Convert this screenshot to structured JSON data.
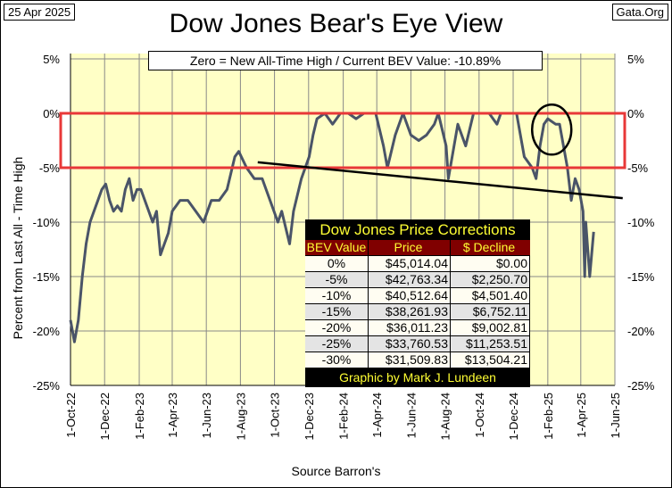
{
  "header": {
    "date": "25 Apr 2025",
    "site": "Gata.Org"
  },
  "footer": {
    "source": "Source Barron's"
  },
  "colors": {
    "plot_bg": "#FFFFC6",
    "series": "#4A5468",
    "box": "#E83838",
    "trend": "#000000"
  },
  "chart_data": {
    "type": "line",
    "title": "Dow Jones Bear's Eye View",
    "subtitle": "Zero = New All-Time High / Current BEV Value:  -10.89%",
    "xlabel": "",
    "ylabel": "Percent from Last All - Time High",
    "ylim": [
      -25,
      5
    ],
    "xlim": [
      "2022-10-01",
      "2025-06-01"
    ],
    "grid": true,
    "y_ticks": [
      "5%",
      "0%",
      "-5%",
      "-10%",
      "-15%",
      "-20%",
      "-25%"
    ],
    "y_tick_values": [
      5,
      0,
      -5,
      -10,
      -15,
      -20,
      -25
    ],
    "x_ticks": [
      "1-Oct-22",
      "1-Dec-22",
      "1-Feb-23",
      "1-Apr-23",
      "1-Jun-23",
      "1-Aug-23",
      "1-Oct-23",
      "1-Dec-23",
      "1-Feb-24",
      "1-Apr-24",
      "1-Jun-24",
      "1-Aug-24",
      "1-Oct-24",
      "1-Dec-24",
      "1-Feb-25",
      "1-Apr-25",
      "1-Jun-25"
    ],
    "series": [
      {
        "name": "Dow Jones BEV",
        "points": [
          [
            "2022-10-01",
            -19
          ],
          [
            "2022-10-08",
            -21
          ],
          [
            "2022-10-15",
            -19
          ],
          [
            "2022-10-22",
            -15
          ],
          [
            "2022-10-29",
            -12
          ],
          [
            "2022-11-05",
            -10
          ],
          [
            "2022-11-12",
            -9
          ],
          [
            "2022-11-19",
            -8
          ],
          [
            "2022-11-26",
            -7
          ],
          [
            "2022-12-03",
            -6.5
          ],
          [
            "2022-12-10",
            -8
          ],
          [
            "2022-12-17",
            -9
          ],
          [
            "2022-12-24",
            -8.5
          ],
          [
            "2022-12-31",
            -9
          ],
          [
            "2023-01-07",
            -7
          ],
          [
            "2023-01-14",
            -6
          ],
          [
            "2023-01-21",
            -8
          ],
          [
            "2023-01-28",
            -7
          ],
          [
            "2023-02-04",
            -7
          ],
          [
            "2023-02-11",
            -8
          ],
          [
            "2023-02-18",
            -9
          ],
          [
            "2023-02-25",
            -10
          ],
          [
            "2023-03-04",
            -9
          ],
          [
            "2023-03-11",
            -13
          ],
          [
            "2023-03-18",
            -12
          ],
          [
            "2023-03-25",
            -11
          ],
          [
            "2023-04-01",
            -9
          ],
          [
            "2023-04-15",
            -8
          ],
          [
            "2023-04-29",
            -8
          ],
          [
            "2023-05-13",
            -9
          ],
          [
            "2023-05-27",
            -10
          ],
          [
            "2023-06-10",
            -8
          ],
          [
            "2023-06-24",
            -8
          ],
          [
            "2023-07-08",
            -7
          ],
          [
            "2023-07-22",
            -4
          ],
          [
            "2023-07-29",
            -3.5
          ],
          [
            "2023-08-12",
            -5
          ],
          [
            "2023-08-26",
            -6
          ],
          [
            "2023-09-09",
            -6
          ],
          [
            "2023-09-23",
            -8
          ],
          [
            "2023-10-07",
            -10
          ],
          [
            "2023-10-14",
            -9
          ],
          [
            "2023-10-28",
            -12
          ],
          [
            "2023-11-04",
            -9
          ],
          [
            "2023-11-18",
            -6
          ],
          [
            "2023-12-02",
            -4
          ],
          [
            "2023-12-09",
            -2
          ],
          [
            "2023-12-16",
            -0.5
          ],
          [
            "2023-12-30",
            0
          ],
          [
            "2024-01-13",
            -1
          ],
          [
            "2024-01-27",
            0
          ],
          [
            "2024-02-10",
            0
          ],
          [
            "2024-02-24",
            -0.5
          ],
          [
            "2024-03-09",
            0
          ],
          [
            "2024-03-30",
            0
          ],
          [
            "2024-04-13",
            -3
          ],
          [
            "2024-04-20",
            -5
          ],
          [
            "2024-05-04",
            -2
          ],
          [
            "2024-05-18",
            0
          ],
          [
            "2024-06-01",
            -2
          ],
          [
            "2024-06-15",
            -2.5
          ],
          [
            "2024-06-29",
            -2
          ],
          [
            "2024-07-13",
            -1
          ],
          [
            "2024-07-20",
            0
          ],
          [
            "2024-08-03",
            -3
          ],
          [
            "2024-08-07",
            -6
          ],
          [
            "2024-08-24",
            -1
          ],
          [
            "2024-09-07",
            -3
          ],
          [
            "2024-09-21",
            0
          ],
          [
            "2024-10-05",
            0
          ],
          [
            "2024-10-19",
            0
          ],
          [
            "2024-11-02",
            -1
          ],
          [
            "2024-11-09",
            0
          ],
          [
            "2024-11-23",
            0
          ],
          [
            "2024-12-07",
            0
          ],
          [
            "2024-12-21",
            -4
          ],
          [
            "2025-01-04",
            -5
          ],
          [
            "2025-01-11",
            -6
          ],
          [
            "2025-01-18",
            -3
          ],
          [
            "2025-01-25",
            -1
          ],
          [
            "2025-02-01",
            -0.5
          ],
          [
            "2025-02-15",
            -1
          ],
          [
            "2025-02-22",
            -1
          ],
          [
            "2025-03-01",
            -3
          ],
          [
            "2025-03-08",
            -5
          ],
          [
            "2025-03-15",
            -8
          ],
          [
            "2025-03-22",
            -6
          ],
          [
            "2025-03-29",
            -7
          ],
          [
            "2025-04-05",
            -9
          ],
          [
            "2025-04-08",
            -15
          ],
          [
            "2025-04-10",
            -10
          ],
          [
            "2025-04-17",
            -15
          ],
          [
            "2025-04-24",
            -10.89
          ]
        ]
      }
    ],
    "annotations": {
      "box_range": [
        0,
        -5
      ],
      "trendline": [
        [
          "2023-09-01",
          -4.5
        ],
        [
          "2025-06-15",
          -7.8
        ]
      ],
      "circle_center": [
        "2025-02-08",
        -1.5
      ]
    },
    "table": {
      "title": "Dow Jones Price Corrections",
      "headers": [
        "BEV Value",
        "Price",
        "$ Decline"
      ],
      "rows": [
        [
          "0%",
          "$45,014.04",
          "$0.00"
        ],
        [
          "-5%",
          "$42,763.34",
          "$2,250.70"
        ],
        [
          "-10%",
          "$40,512.64",
          "$4,501.40"
        ],
        [
          "-15%",
          "$38,261.93",
          "$6,752.11"
        ],
        [
          "-20%",
          "$36,011.23",
          "$9,002.81"
        ],
        [
          "-25%",
          "$33,760.53",
          "$11,253.51"
        ],
        [
          "-30%",
          "$31,509.83",
          "$13,504.21"
        ]
      ],
      "footer": "Graphic by Mark J. Lundeen"
    }
  }
}
